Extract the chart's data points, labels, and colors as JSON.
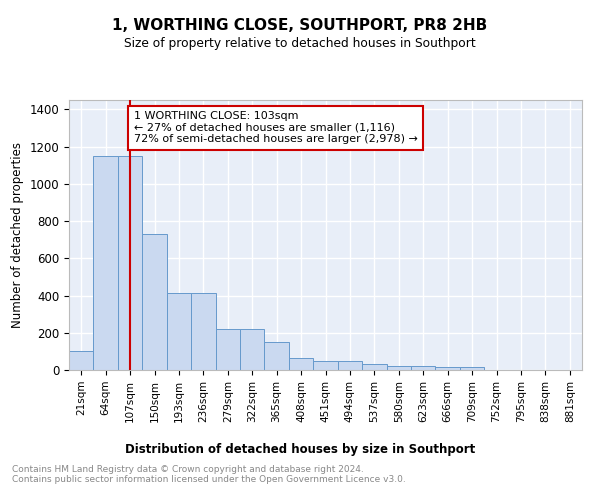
{
  "title": "1, WORTHING CLOSE, SOUTHPORT, PR8 2HB",
  "subtitle": "Size of property relative to detached houses in Southport",
  "xlabel": "Distribution of detached houses by size in Southport",
  "ylabel": "Number of detached properties",
  "bar_labels": [
    "21sqm",
    "64sqm",
    "107sqm",
    "150sqm",
    "193sqm",
    "236sqm",
    "279sqm",
    "322sqm",
    "365sqm",
    "408sqm",
    "451sqm",
    "494sqm",
    "537sqm",
    "580sqm",
    "623sqm",
    "666sqm",
    "709sqm",
    "752sqm",
    "795sqm",
    "838sqm",
    "881sqm"
  ],
  "bar_values": [
    100,
    1150,
    1150,
    730,
    415,
    415,
    220,
    220,
    150,
    65,
    50,
    50,
    30,
    20,
    20,
    15,
    15,
    0,
    0,
    0,
    0
  ],
  "bar_color": "#cad9f0",
  "bar_edge_color": "#6699cc",
  "red_line_index": 2,
  "red_line_color": "#cc0000",
  "annotation_text": "1 WORTHING CLOSE: 103sqm\n← 27% of detached houses are smaller (1,116)\n72% of semi-detached houses are larger (2,978) →",
  "annotation_box_color": "white",
  "annotation_box_edge_color": "#cc0000",
  "background_color": "#e8eef8",
  "grid_color": "#ffffff",
  "footer_text": "Contains HM Land Registry data © Crown copyright and database right 2024.\nContains public sector information licensed under the Open Government Licence v3.0.",
  "ylim": [
    0,
    1450
  ],
  "yticks": [
    0,
    200,
    400,
    600,
    800,
    1000,
    1200,
    1400
  ]
}
